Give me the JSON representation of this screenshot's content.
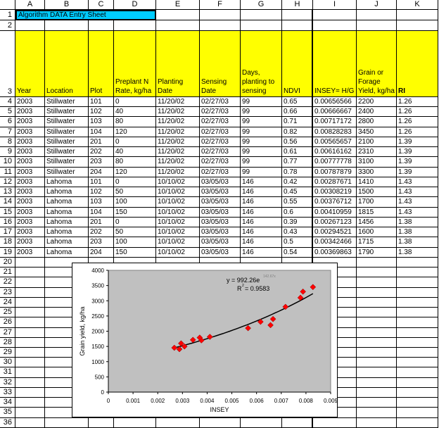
{
  "sheet": {
    "columns": [
      "A",
      "B",
      "C",
      "D",
      "E",
      "F",
      "G",
      "H",
      "I",
      "J",
      "K"
    ],
    "title": "Algorithm DATA Entry Sheet",
    "headers": [
      "Year",
      "Location",
      "Plot",
      "Preplant N Rate, kg/ha",
      "Planting Date",
      "Sensing Date",
      "Days, planting to sensing",
      "NDVI",
      "INSEY= H/G",
      "Grain or Forage Yield, kg/ha",
      "RI"
    ],
    "rows": [
      [
        "2003",
        "Stillwater",
        "101",
        "0",
        "11/20/02",
        "02/27/03",
        "99",
        "0.65",
        "0.00656566",
        "2200",
        "1.26"
      ],
      [
        "2003",
        "Stillwater",
        "102",
        "40",
        "11/20/02",
        "02/27/03",
        "99",
        "0.66",
        "0.00666667",
        "2400",
        "1.26"
      ],
      [
        "2003",
        "Stillwater",
        "103",
        "80",
        "11/20/02",
        "02/27/03",
        "99",
        "0.71",
        "0.00717172",
        "2800",
        "1.26"
      ],
      [
        "2003",
        "Stillwater",
        "104",
        "120",
        "11/20/02",
        "02/27/03",
        "99",
        "0.82",
        "0.00828283",
        "3450",
        "1.26"
      ],
      [
        "2003",
        "Stillwater",
        "201",
        "0",
        "11/20/02",
        "02/27/03",
        "99",
        "0.56",
        "0.00565657",
        "2100",
        "1.39"
      ],
      [
        "2003",
        "Stillwater",
        "202",
        "40",
        "11/20/02",
        "02/27/03",
        "99",
        "0.61",
        "0.00616162",
        "2310",
        "1.39"
      ],
      [
        "2003",
        "Stillwater",
        "203",
        "80",
        "11/20/02",
        "02/27/03",
        "99",
        "0.77",
        "0.00777778",
        "3100",
        "1.39"
      ],
      [
        "2003",
        "Stillwater",
        "204",
        "120",
        "11/20/02",
        "02/27/03",
        "99",
        "0.78",
        "0.00787879",
        "3300",
        "1.39"
      ],
      [
        "2003",
        "Lahoma",
        "101",
        "0",
        "10/10/02",
        "03/05/03",
        "146",
        "0.42",
        "0.00287671",
        "1410",
        "1.43"
      ],
      [
        "2003",
        "Lahoma",
        "102",
        "50",
        "10/10/02",
        "03/05/03",
        "146",
        "0.45",
        "0.00308219",
        "1500",
        "1.43"
      ],
      [
        "2003",
        "Lahoma",
        "103",
        "100",
        "10/10/02",
        "03/05/03",
        "146",
        "0.55",
        "0.00376712",
        "1700",
        "1.43"
      ],
      [
        "2003",
        "Lahoma",
        "104",
        "150",
        "10/10/02",
        "03/05/03",
        "146",
        "0.6",
        "0.00410959",
        "1815",
        "1.43"
      ],
      [
        "2003",
        "Lahoma",
        "201",
        "0",
        "10/10/02",
        "03/05/03",
        "146",
        "0.39",
        "0.00267123",
        "1456",
        "1.38"
      ],
      [
        "2003",
        "Lahoma",
        "202",
        "50",
        "10/10/02",
        "03/05/03",
        "146",
        "0.43",
        "0.00294521",
        "1600",
        "1.38"
      ],
      [
        "2003",
        "Lahoma",
        "203",
        "100",
        "10/10/02",
        "03/05/03",
        "146",
        "0.5",
        "0.00342466",
        "1715",
        "1.38"
      ],
      [
        "2003",
        "Lahoma",
        "204",
        "150",
        "10/10/02",
        "03/05/03",
        "146",
        "0.54",
        "0.00369863",
        "1790",
        "1.38"
      ]
    ],
    "row_count": 36,
    "colors": {
      "title_bg": "#00ccff",
      "header_bg": "#ffff00",
      "plot_bg": "#c0c0c0",
      "marker": "#ff0000"
    }
  },
  "chart_data": {
    "type": "scatter",
    "xlabel": "INSEY",
    "ylabel": "Grain yield, kg/ha",
    "xlim": [
      0,
      0.009
    ],
    "ylim": [
      0,
      4000
    ],
    "xticks": [
      "0",
      "0.001",
      "0.002",
      "0.003",
      "0.004",
      "0.005",
      "0.006",
      "0.007",
      "0.008",
      "0.009"
    ],
    "yticks": [
      "0",
      "500",
      "1000",
      "1500",
      "2000",
      "2500",
      "3000",
      "3500",
      "4000"
    ],
    "x": [
      0.00656566,
      0.00666667,
      0.00717172,
      0.00828283,
      0.00565657,
      0.00616162,
      0.00777778,
      0.00787879,
      0.00287671,
      0.00308219,
      0.00376712,
      0.00410959,
      0.00267123,
      0.00294521,
      0.00342466,
      0.00369863
    ],
    "y": [
      2200,
      2400,
      2800,
      3450,
      2100,
      2310,
      3100,
      3300,
      1410,
      1500,
      1700,
      1815,
      1456,
      1600,
      1715,
      1790
    ],
    "trendline": {
      "type": "exponential",
      "a": 992.26,
      "b": 142.67,
      "equation": "y = 992.26e",
      "exponent": "142.67x",
      "r2_label": "R",
      "r2_sup": "2",
      "r2_value": " = 0.9583"
    },
    "grid": false,
    "legend": "none"
  }
}
